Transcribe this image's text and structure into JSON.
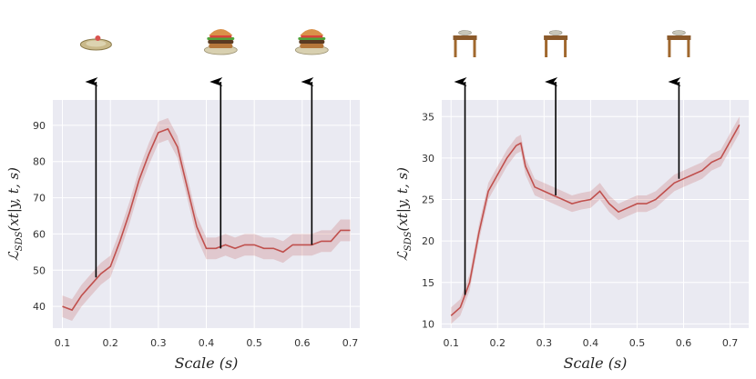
{
  "chart_data": [
    {
      "type": "line",
      "xlabel": "Scale (s)",
      "ylabel": "ℒSDS(xt|y,t,s)",
      "ylabel_main": "ℒ",
      "ylabel_sub": "SDS",
      "ylabel_args": "(xt|y, t, s)",
      "xlim": [
        0.08,
        0.72
      ],
      "ylim": [
        34,
        97
      ],
      "xticks": [
        "0.1",
        "0.2",
        "0.3",
        "0.4",
        "0.5",
        "0.6",
        "0.7"
      ],
      "yticks": [
        "40",
        "50",
        "60",
        "70",
        "80",
        "90"
      ],
      "grid": true,
      "series": [
        {
          "color": "#c0504d",
          "x": [
            0.1,
            0.12,
            0.14,
            0.16,
            0.18,
            0.2,
            0.22,
            0.24,
            0.26,
            0.28,
            0.3,
            0.32,
            0.34,
            0.36,
            0.38,
            0.4,
            0.42,
            0.44,
            0.46,
            0.48,
            0.5,
            0.52,
            0.54,
            0.56,
            0.58,
            0.6,
            0.62,
            0.64,
            0.66,
            0.68,
            0.7
          ],
          "y": [
            40,
            39,
            43,
            46,
            49,
            51,
            58,
            66,
            75,
            82,
            88,
            89,
            84,
            73,
            62,
            56,
            56,
            57,
            56,
            57,
            57,
            56,
            56,
            55,
            57,
            57,
            57,
            58,
            58,
            61,
            61
          ],
          "band": 3
        }
      ],
      "arrows": [
        {
          "x": 0.17,
          "y_start": 48
        },
        {
          "x": 0.43,
          "y_start": 56
        },
        {
          "x": 0.62,
          "y_start": 57
        }
      ],
      "thumbnails": [
        "plate-icon",
        "burger-icon",
        "burger-icon"
      ]
    },
    {
      "type": "line",
      "xlabel": "Scale (s)",
      "ylabel": "ℒSDS(xt|y,t,s)",
      "ylabel_main": "ℒ",
      "ylabel_sub": "SDS",
      "ylabel_args": "(xt|y, t, s)",
      "xlim": [
        0.08,
        0.74
      ],
      "ylim": [
        9.5,
        37
      ],
      "xticks": [
        "0.1",
        "0.2",
        "0.3",
        "0.4",
        "0.5",
        "0.6",
        "0.7"
      ],
      "yticks": [
        "10",
        "15",
        "20",
        "25",
        "30",
        "35"
      ],
      "grid": true,
      "series": [
        {
          "color": "#c0504d",
          "x": [
            0.1,
            0.12,
            0.14,
            0.16,
            0.18,
            0.2,
            0.22,
            0.24,
            0.25,
            0.26,
            0.28,
            0.3,
            0.32,
            0.34,
            0.36,
            0.38,
            0.4,
            0.42,
            0.44,
            0.46,
            0.48,
            0.5,
            0.52,
            0.54,
            0.56,
            0.58,
            0.6,
            0.62,
            0.64,
            0.66,
            0.68,
            0.7,
            0.72
          ],
          "y": [
            11,
            12,
            15,
            21,
            26,
            28,
            30,
            31.5,
            31.8,
            29,
            26.5,
            26,
            25.5,
            25,
            24.5,
            24.8,
            25,
            26,
            24.5,
            23.5,
            24,
            24.5,
            24.5,
            25,
            26,
            27,
            27.5,
            28,
            28.5,
            29.5,
            30,
            32,
            34
          ],
          "band": 1
        }
      ],
      "arrows": [
        {
          "x": 0.13,
          "y_start": 13.5
        },
        {
          "x": 0.325,
          "y_start": 25.5
        },
        {
          "x": 0.59,
          "y_start": 27.5
        }
      ],
      "thumbnails": [
        "table-icon",
        "table-icon",
        "table-icon"
      ]
    }
  ]
}
